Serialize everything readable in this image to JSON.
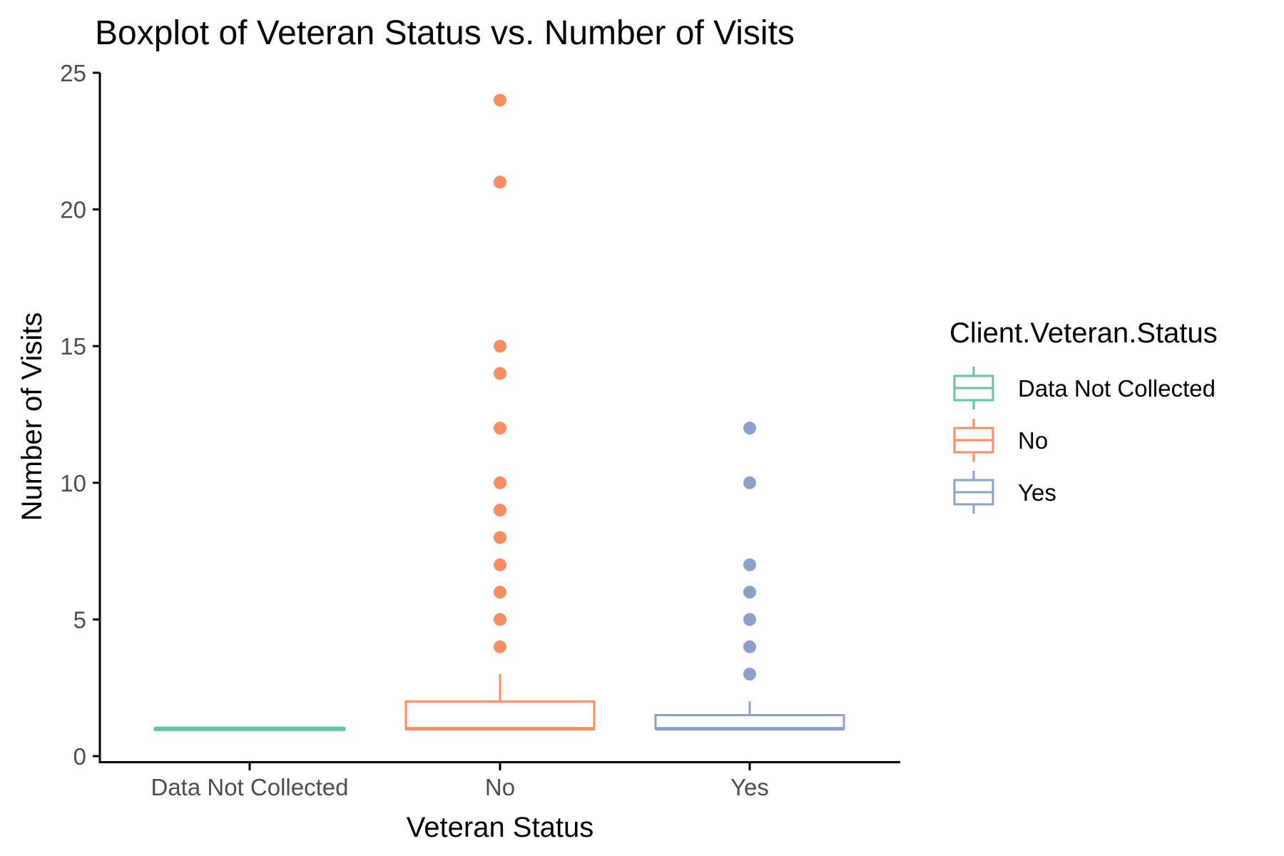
{
  "chart_data": {
    "type": "boxplot",
    "title": "Boxplot of Veteran Status vs. Number of Visits",
    "xlabel": "Veteran Status",
    "ylabel": "Number of Visits",
    "ylim": [
      0,
      25
    ],
    "y_ticks": [
      0,
      5,
      10,
      15,
      20,
      25
    ],
    "grid": false,
    "legend": {
      "title": "Client.Veteran.Status",
      "placement": "right"
    },
    "categories": [
      "Data Not Collected",
      "No",
      "Yes"
    ],
    "series": [
      {
        "name": "Data Not Collected",
        "color": "#66c2a5",
        "q1": 1,
        "median": 1,
        "q3": 1,
        "whisker_low": 1,
        "whisker_high": 1,
        "outliers": []
      },
      {
        "name": "No",
        "color": "#fc8d62",
        "q1": 1,
        "median": 1,
        "q3": 2,
        "whisker_low": 1,
        "whisker_high": 3,
        "outliers": [
          4,
          5,
          6,
          7,
          8,
          9,
          10,
          12,
          14,
          15,
          21,
          24
        ]
      },
      {
        "name": "Yes",
        "color": "#8da0cb",
        "q1": 1,
        "median": 1,
        "q3": 1.5,
        "whisker_low": 1,
        "whisker_high": 2,
        "outliers": [
          3,
          4,
          5,
          6,
          7,
          10,
          12
        ]
      }
    ]
  }
}
